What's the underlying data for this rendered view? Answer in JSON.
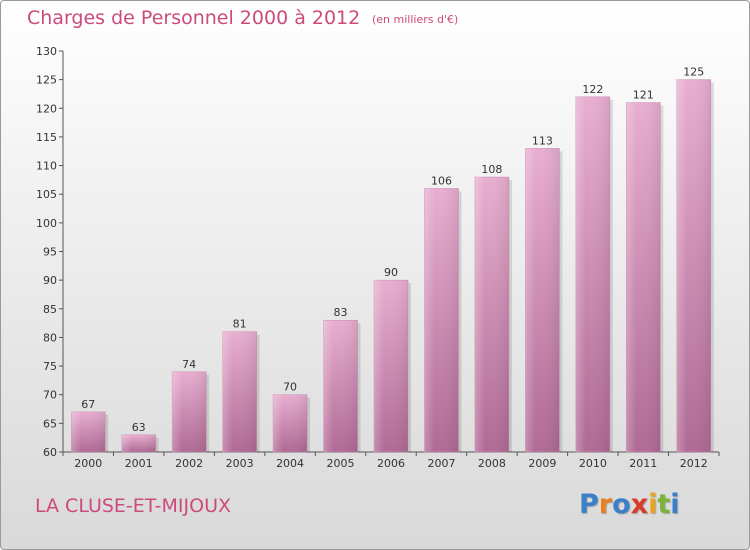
{
  "header": {
    "title": "Charges de Personnel 2000 à 2012",
    "subtitle": "(en milliers d'€)"
  },
  "footer": {
    "commune": "LA CLUSE-ET-MIJOUX",
    "brand_letters": [
      {
        "char": "P",
        "color": "#3a7fc8"
      },
      {
        "char": "r",
        "color": "#e8801f"
      },
      {
        "char": "o",
        "color": "#3a7fc8"
      },
      {
        "char": "x",
        "color": "#d93a2a"
      },
      {
        "char": "i",
        "color": "#e8a31f"
      },
      {
        "char": "t",
        "color": "#7ab53a"
      },
      {
        "char": "i",
        "color": "#3a7fc8"
      }
    ]
  },
  "colors": {
    "bar_top": "#e8aed0",
    "bar_bottom": "#b06a95",
    "axis": "#555555",
    "title": "#cc4b7c"
  },
  "chart_data": {
    "type": "bar",
    "categories": [
      "2000",
      "2001",
      "2002",
      "2003",
      "2004",
      "2005",
      "2006",
      "2007",
      "2008",
      "2009",
      "2010",
      "2011",
      "2012"
    ],
    "values": [
      67,
      63,
      74,
      81,
      70,
      83,
      90,
      106,
      108,
      113,
      122,
      121,
      125
    ],
    "title": "Charges de Personnel 2000 à 2012",
    "xlabel": "",
    "ylabel": "",
    "ylim": [
      60,
      130
    ],
    "yticks": [
      60,
      65,
      70,
      75,
      80,
      85,
      90,
      95,
      100,
      105,
      110,
      115,
      120,
      125,
      130
    ],
    "grid": false,
    "legend": "none"
  }
}
